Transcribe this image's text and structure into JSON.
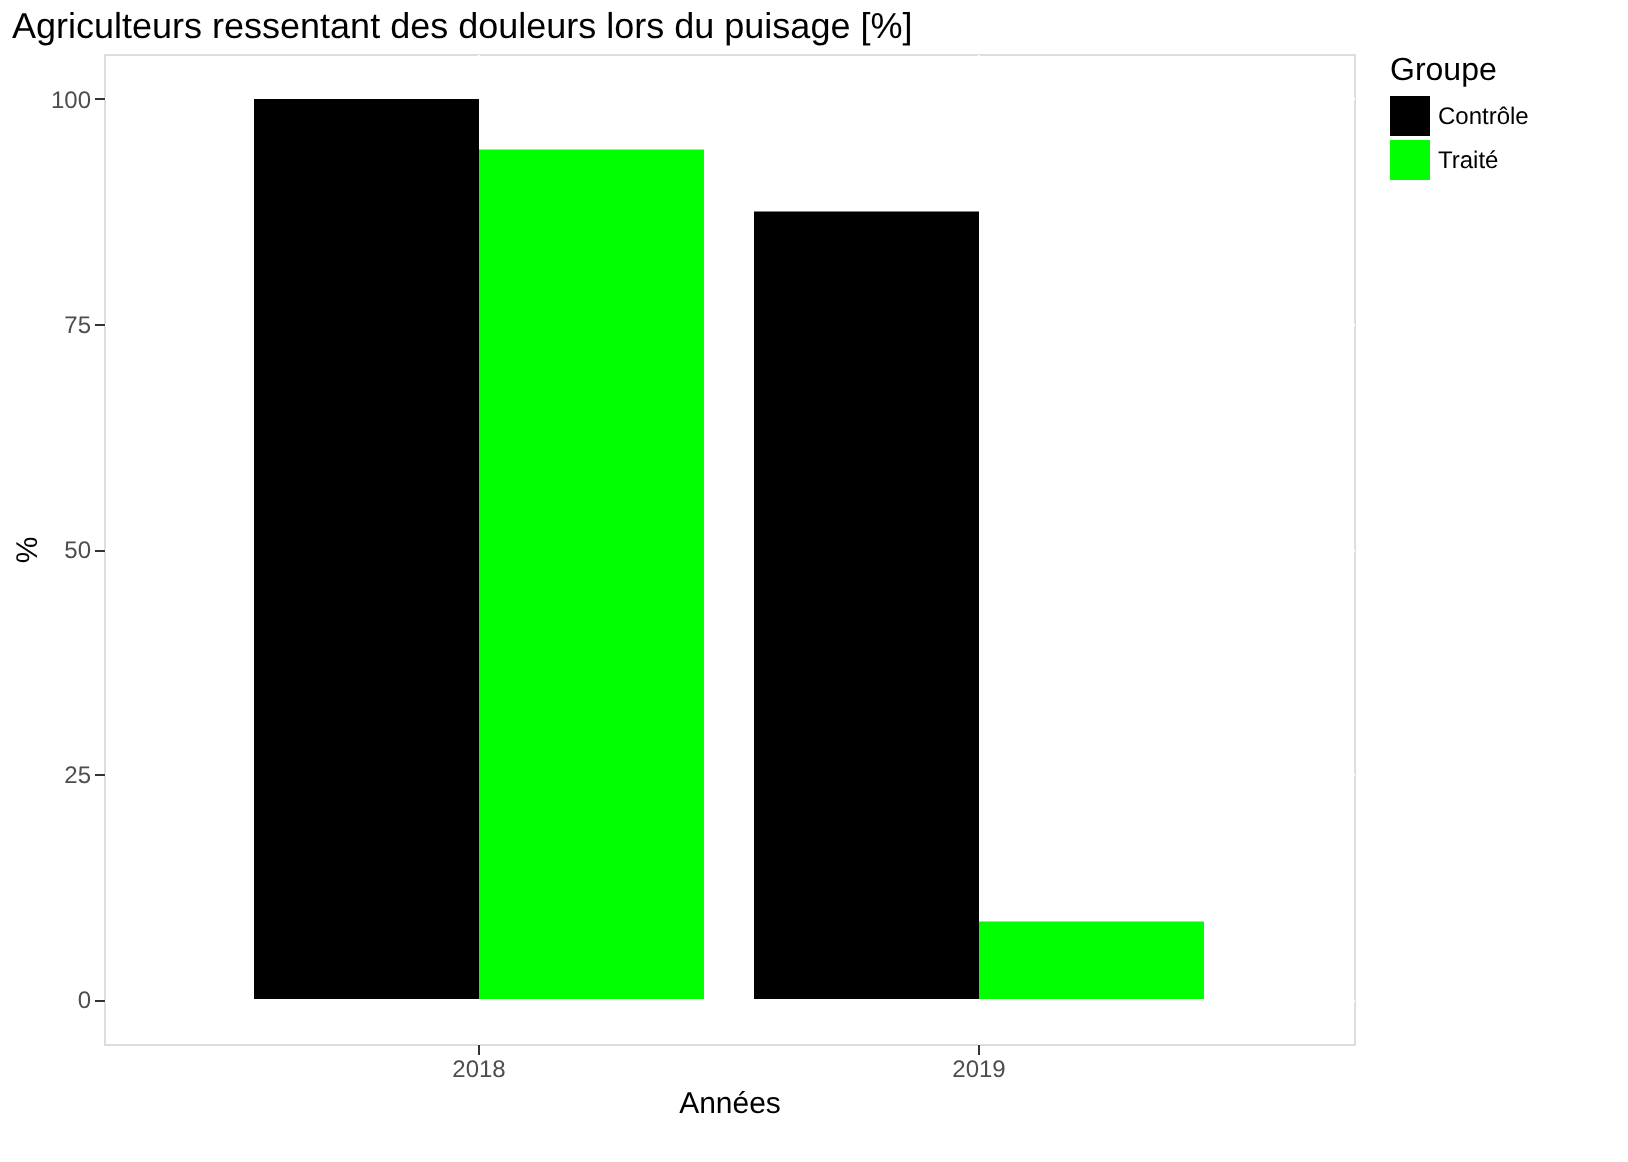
{
  "chart_data": {
    "type": "bar",
    "title": "Agriculteurs ressentant des douleurs lors du puisage [%]",
    "xlabel": "Années",
    "ylabel": "%",
    "legend_title": "Groupe",
    "categories": [
      "2018",
      "2019"
    ],
    "series": [
      {
        "name": "Contrôle",
        "color": "#000000",
        "values": [
          100,
          87.5
        ]
      },
      {
        "name": "Traité",
        "color": "#00ff00",
        "values": [
          94.4,
          8.6
        ]
      }
    ],
    "ylim": [
      -5,
      105
    ],
    "yticks": [
      0,
      25,
      50,
      75,
      100
    ],
    "grid": true,
    "legend": "right"
  }
}
